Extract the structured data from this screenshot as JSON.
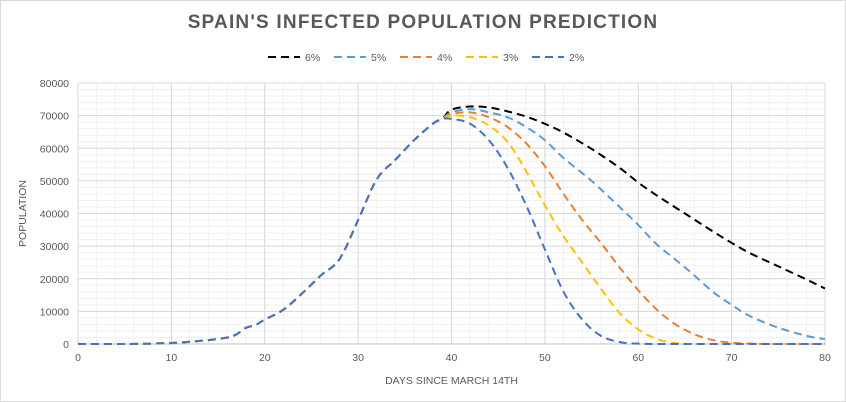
{
  "chart_data": {
    "type": "line",
    "title": "SPAIN'S INFECTED POPULATION PREDICTION",
    "xlabel": "DAYS SINCE MARCH 14TH",
    "ylabel": "POPULATION",
    "xlim": [
      0,
      80
    ],
    "ylim": [
      0,
      80000
    ],
    "x_ticks": [
      0,
      10,
      20,
      30,
      40,
      50,
      60,
      70,
      80
    ],
    "y_ticks": [
      0,
      10000,
      20000,
      30000,
      40000,
      50000,
      60000,
      70000,
      80000
    ],
    "grid": true,
    "legend_position": "top",
    "line_style": "dashed",
    "shared_history": {
      "x": [
        0,
        5,
        10,
        12,
        14,
        16,
        17,
        18,
        19,
        20,
        22,
        24,
        26,
        28,
        30,
        32,
        34,
        36,
        38,
        39
      ],
      "y": [
        0,
        0,
        300,
        700,
        1200,
        2000,
        3000,
        5000,
        5800,
        7500,
        10500,
        15500,
        21000,
        26000,
        38000,
        50500,
        56500,
        62500,
        67500,
        69000
      ]
    },
    "series": [
      {
        "name": "6%",
        "color": "#000000",
        "x": [
          40,
          42,
          44,
          46,
          48,
          50,
          52,
          55,
          58,
          60,
          62,
          65,
          68,
          70,
          72,
          75,
          78,
          80
        ],
        "y": [
          71800,
          72800,
          72500,
          71300,
          69700,
          67500,
          64800,
          59800,
          54000,
          49500,
          45500,
          40000,
          34500,
          31000,
          27800,
          23800,
          19800,
          17000
        ]
      },
      {
        "name": "5%",
        "color": "#5b9bd5",
        "x": [
          40,
          42,
          44,
          46,
          48,
          50,
          52,
          55,
          58,
          60,
          62,
          65,
          68,
          70,
          72,
          75,
          78,
          80
        ],
        "y": [
          71000,
          72000,
          71000,
          69500,
          66500,
          62500,
          57000,
          50000,
          42000,
          36500,
          30500,
          23500,
          16000,
          12000,
          8500,
          5000,
          2500,
          1500
        ]
      },
      {
        "name": "4%",
        "color": "#ed7d31",
        "x": [
          40,
          42,
          44,
          46,
          48,
          50,
          52,
          54,
          56,
          58,
          60,
          62,
          64,
          66,
          68,
          70,
          72,
          75,
          80
        ],
        "y": [
          70500,
          71000,
          69500,
          66500,
          61500,
          54500,
          46000,
          38000,
          31000,
          23500,
          16500,
          10500,
          6000,
          3000,
          1200,
          400,
          100,
          0,
          0
        ]
      },
      {
        "name": "3%",
        "color": "#ffc000",
        "x": [
          40,
          42,
          44,
          46,
          48,
          50,
          52,
          54,
          56,
          58,
          60,
          62,
          64,
          66,
          70,
          80
        ],
        "y": [
          70000,
          69500,
          67000,
          62000,
          53000,
          42500,
          33000,
          25000,
          17000,
          9500,
          4500,
          1500,
          300,
          0,
          0,
          0
        ]
      },
      {
        "name": "2%",
        "color": "#4472c4",
        "x": [
          40,
          42,
          44,
          46,
          48,
          50,
          52,
          54,
          56,
          58,
          60,
          62,
          65,
          70,
          80
        ],
        "y": [
          69000,
          67500,
          62500,
          54000,
          42500,
          29000,
          16000,
          7500,
          2500,
          600,
          100,
          0,
          0,
          0,
          0
        ]
      }
    ]
  }
}
